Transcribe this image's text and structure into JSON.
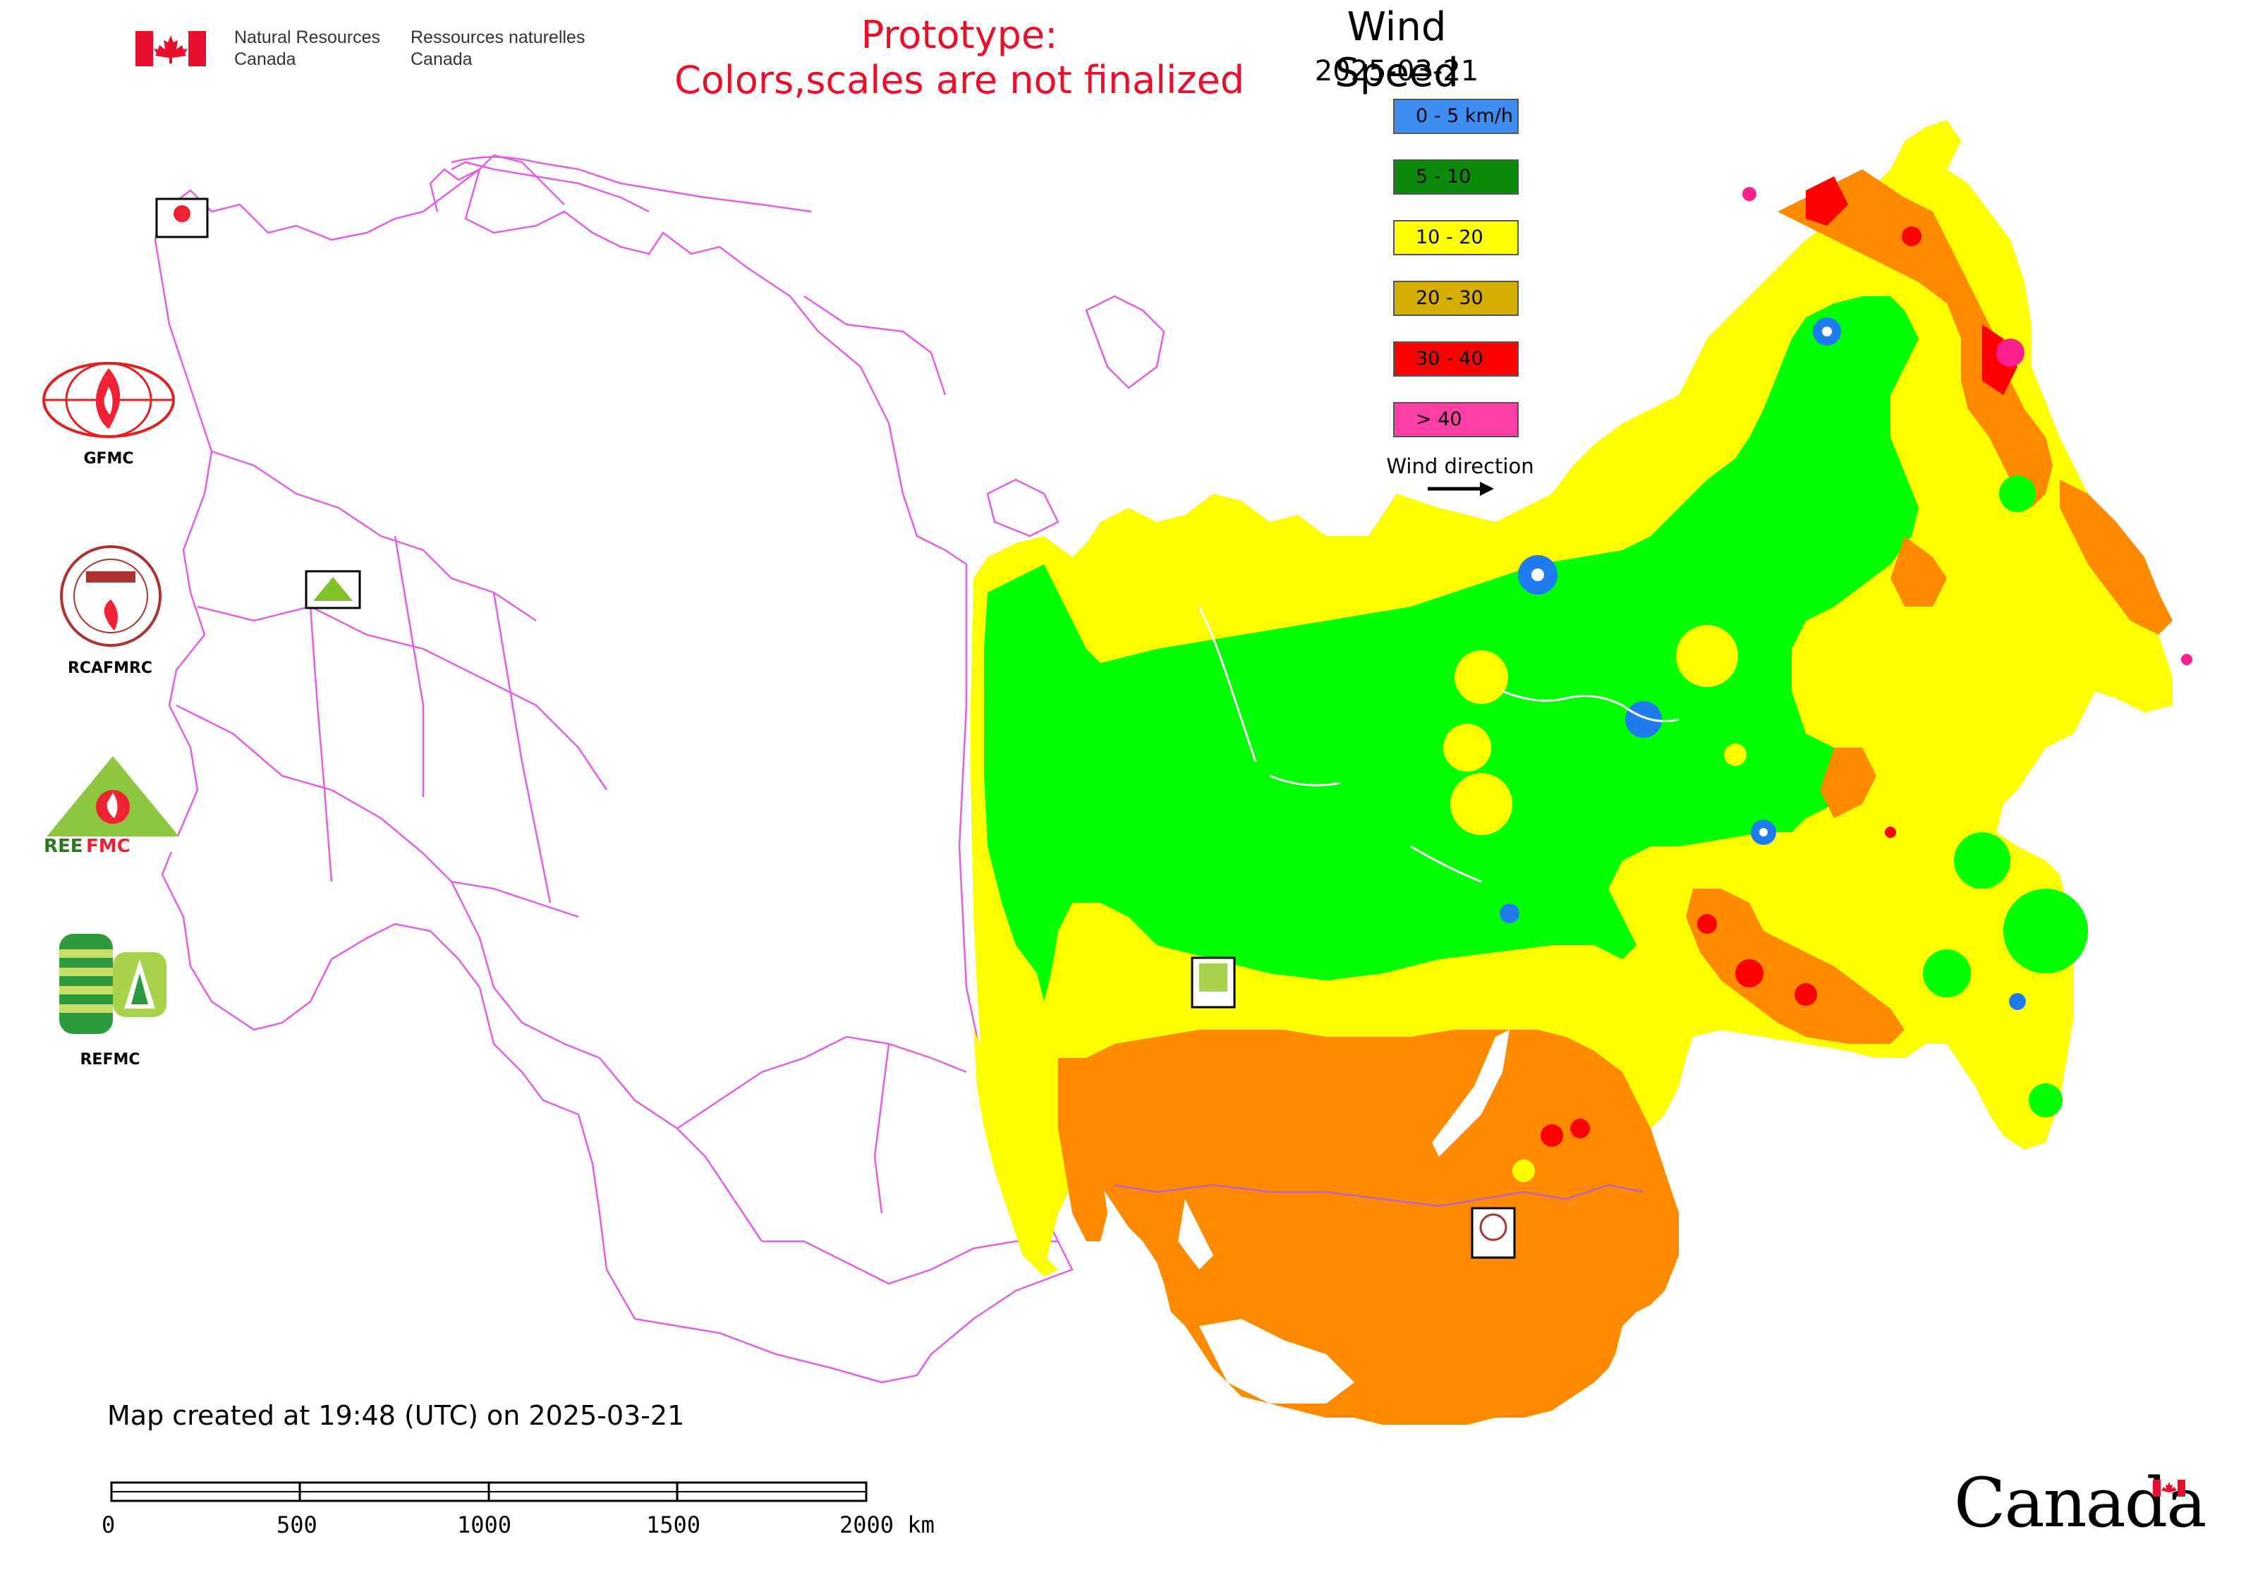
{
  "header": {
    "gov_en": [
      "Natural Resources",
      "Canada"
    ],
    "gov_fr": [
      "Ressources naturelles",
      "Canada"
    ],
    "prototype_lines": [
      "Prototype:",
      "Colors,scales are not finalized"
    ]
  },
  "legend": {
    "title": "Wind Speed",
    "date": "2025-03-21",
    "items": [
      {
        "label": "0 - 5 km/h",
        "color": "#3d8ef0"
      },
      {
        "label": "5 - 10",
        "color": "#0b8a0b"
      },
      {
        "label": "10 - 20",
        "color": "#ffff00"
      },
      {
        "label": "20 - 30",
        "color": "#d6ae00"
      },
      {
        "label": "30 - 40",
        "color": "#ff0000"
      },
      {
        "label": "> 40",
        "color": "#ff3fa6"
      }
    ],
    "wind_direction_label": "Wind direction"
  },
  "map_colors": {
    "border": "#e060e0",
    "calm": "#1f7cf0",
    "light": "#00ff00",
    "moderate": "#ffff00",
    "fresh": "#ff8a00",
    "strong": "#ff0000",
    "gale": "#ff2090"
  },
  "logos": {
    "gfmc": "GFMC",
    "rcafmrc": "RCAFMRC",
    "reefmc": "REEFMC",
    "refmc": "REFMC"
  },
  "footer": {
    "created": "Map created at 19:48 (UTC) on 2025-03-21",
    "scale_ticks": [
      "0",
      "500",
      "1000",
      "1500",
      "2000 km"
    ],
    "wordmark": "Canada"
  }
}
